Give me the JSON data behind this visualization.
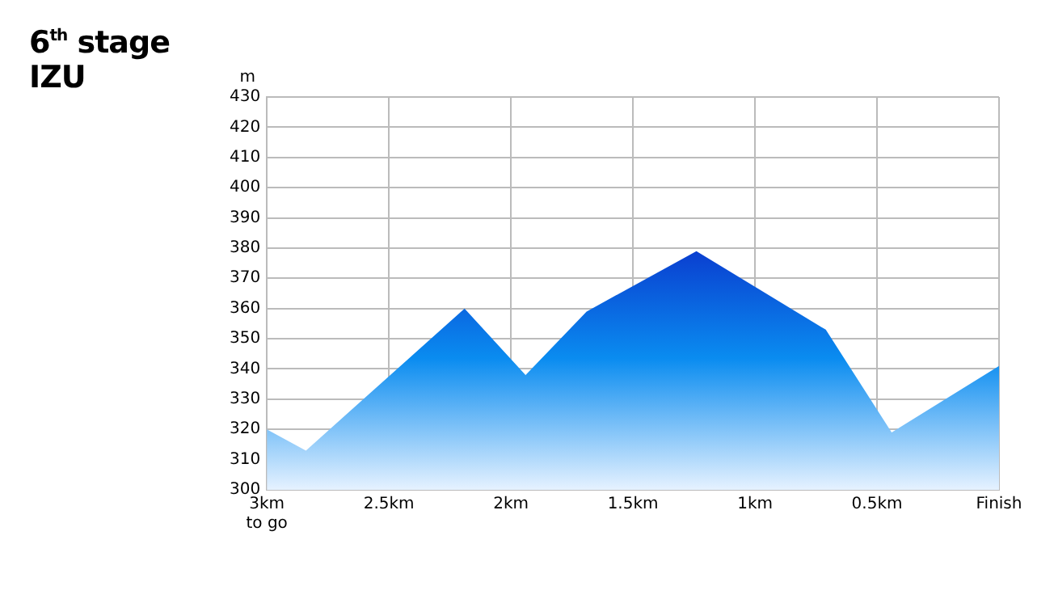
{
  "chart_data": {
    "type": "area",
    "title": "6$^{th}$ stage",
    "subtitle": "IZU",
    "ylabel": "m",
    "x": [
      3,
      2.84,
      2.19,
      1.94,
      1.69,
      1.24,
      0.71,
      0.44,
      0
    ],
    "series": [
      {
        "color": "#0a3fd0",
        "values": [
          320,
          313,
          360,
          338,
          359,
          379,
          353,
          319,
          341
        ]
      }
    ],
    "xlim": [
      3,
      0
    ],
    "xticks": [
      {
        "value": 3,
        "label": "3km\nto go"
      },
      {
        "value": 2.5,
        "label": "2.5km"
      },
      {
        "value": 2,
        "label": "2km"
      },
      {
        "value": 1.5,
        "label": "1.5km"
      },
      {
        "value": 1,
        "label": "1km"
      },
      {
        "value": 0.5,
        "label": "0.5km"
      },
      {
        "value": 0,
        "label": "Finish"
      }
    ],
    "ylim": [
      300,
      430
    ],
    "yticks": [
      300,
      310,
      320,
      330,
      340,
      350,
      360,
      370,
      380,
      390,
      400,
      410,
      420,
      430
    ],
    "grid": true,
    "legend": false,
    "marker": "none"
  }
}
